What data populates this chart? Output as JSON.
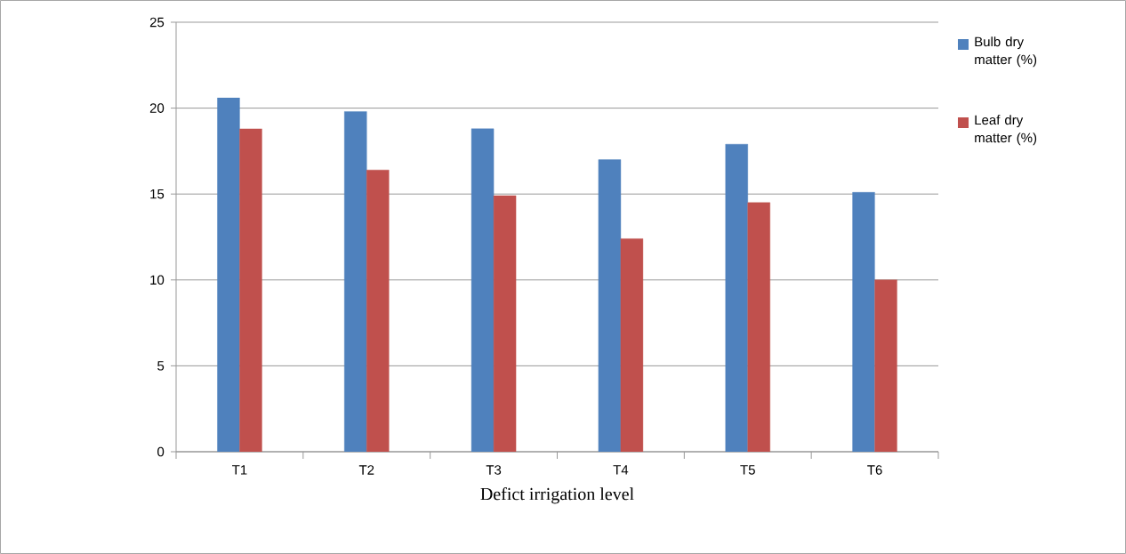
{
  "chart_data": {
    "type": "bar",
    "xlabel": "Defict irrigation level",
    "categories": [
      "T1",
      "T2",
      "T3",
      "T4",
      "T5",
      "T6"
    ],
    "series": [
      {
        "name": "Bulb dry matter (%)",
        "color": "#4f81bd",
        "values": [
          20.6,
          19.8,
          18.8,
          17.0,
          17.9,
          15.1
        ]
      },
      {
        "name": "Leaf dry matter (%)",
        "color": "#c0504d",
        "values": [
          18.8,
          16.4,
          14.9,
          12.4,
          14.5,
          10.0
        ]
      }
    ],
    "ylim": [
      0,
      25
    ],
    "yticks": [
      0,
      5,
      10,
      15,
      20,
      25
    ],
    "grid": "y",
    "legend": "right"
  }
}
